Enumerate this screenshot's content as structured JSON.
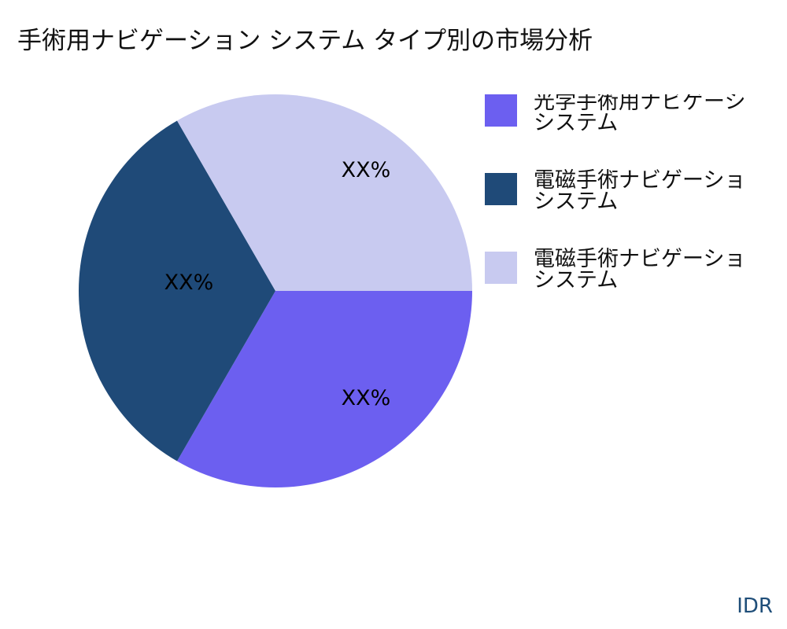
{
  "title": "手術用ナビゲーション システム タイプ別の市場分析",
  "brand": "IDR",
  "chart_data": {
    "type": "pie",
    "title": "手術用ナビゲーション システム タイプ別の市場分析",
    "legend_position": "right",
    "slices": [
      {
        "label": [
          "光学手術用ナビゲーシ",
          "システム"
        ],
        "value": 33.33,
        "data_label": "XX%",
        "color": "#6c5ff0"
      },
      {
        "label": [
          "電磁手術ナビゲーショ",
          "システム"
        ],
        "value": 33.33,
        "data_label": "XX%",
        "color": "#1f4a78"
      },
      {
        "label": [
          "電磁手術ナビゲーショ",
          "システム"
        ],
        "value": 33.33,
        "data_label": "XX%",
        "color": "#c8caf0"
      }
    ]
  }
}
